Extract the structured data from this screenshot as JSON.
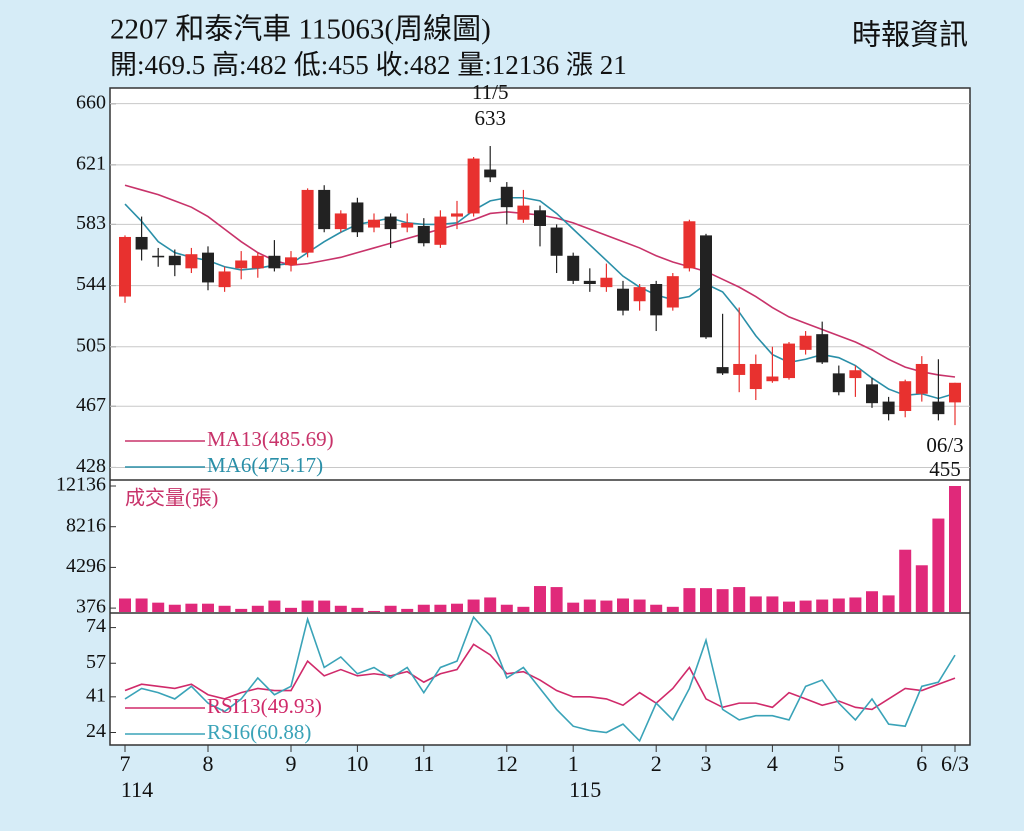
{
  "chart_data": {
    "type": "candlestick",
    "title": "2207  和泰汽車 115063(周線圖)",
    "source": "時報資訊",
    "subtitle": "開:469.5 高:482 低:455 收:482 量:12136 漲 21",
    "categories": [
      "7",
      null,
      null,
      null,
      null,
      "8",
      null,
      null,
      null,
      null,
      "9",
      null,
      null,
      null,
      "10",
      null,
      null,
      null,
      "11",
      null,
      null,
      null,
      null,
      "12",
      null,
      null,
      null,
      "1",
      null,
      null,
      null,
      null,
      "2",
      null,
      null,
      "3",
      null,
      null,
      null,
      "4",
      null,
      null,
      null,
      "5",
      null,
      null,
      null,
      null,
      "6",
      null,
      "6/3"
    ],
    "years": [
      "114",
      null,
      null,
      null,
      null,
      null,
      null,
      null,
      null,
      null,
      null,
      null,
      null,
      null,
      null,
      null,
      null,
      null,
      null,
      null,
      null,
      null,
      null,
      null,
      null,
      null,
      null,
      "115",
      null,
      null,
      null,
      null,
      null,
      null,
      null,
      null,
      null,
      null,
      null,
      null,
      null,
      null,
      null,
      null,
      null,
      null,
      null,
      null,
      null,
      null,
      null
    ],
    "up_color": "#e8312f",
    "down_color": "#222222",
    "open": [
      537,
      575,
      563,
      563,
      555,
      565,
      543,
      555,
      555,
      563,
      557,
      565,
      605,
      580,
      597,
      581,
      588,
      581,
      582,
      570,
      588,
      590,
      618,
      607,
      586,
      592,
      581,
      563,
      547,
      543,
      542,
      534,
      545,
      530,
      555,
      576,
      492,
      487,
      478,
      483,
      485,
      503,
      513,
      488,
      485,
      481,
      470,
      464,
      475,
      470,
      469.5
    ],
    "high": [
      576,
      588,
      568,
      567,
      568,
      569,
      556,
      566,
      565,
      573,
      566,
      606,
      608,
      592,
      600,
      590,
      590,
      590,
      587,
      592,
      598,
      626,
      633,
      610,
      605,
      595,
      583,
      565,
      555,
      558,
      547,
      545,
      547,
      552,
      586,
      577,
      526,
      530,
      500,
      505,
      508,
      515,
      521,
      493,
      493,
      485,
      473,
      484,
      499,
      497,
      482
    ],
    "low": [
      533,
      560,
      556,
      550,
      552,
      541,
      540,
      548,
      549,
      553,
      553,
      562,
      578,
      578,
      575,
      578,
      568,
      578,
      569,
      568,
      580,
      588,
      610,
      583,
      584,
      569,
      552,
      545,
      540,
      540,
      525,
      528,
      515,
      528,
      553,
      510,
      487,
      476,
      471,
      482,
      484,
      500,
      494,
      474,
      473,
      466,
      458,
      460,
      470,
      458,
      455
    ],
    "close": [
      575,
      567,
      562,
      557,
      564,
      546,
      553,
      560,
      563,
      555,
      562,
      605,
      580,
      590,
      578,
      586,
      580,
      584,
      571,
      588,
      590,
      625,
      613,
      594,
      595,
      582,
      563,
      547,
      545,
      549,
      528,
      543,
      525,
      550,
      585,
      511,
      488,
      494,
      494,
      486,
      507,
      512,
      495,
      476,
      490,
      469,
      462,
      483,
      494,
      462,
      482
    ],
    "ylim": [
      420,
      670
    ],
    "yticks": [
      428,
      467,
      505,
      544,
      583,
      621,
      660
    ],
    "grid": true,
    "annotations": [
      {
        "date": "11/5",
        "value": 633
      },
      {
        "date": "06/3",
        "value": 455
      }
    ],
    "series": [
      {
        "name": "MA13(485.69)",
        "color": "#c8336a",
        "values": [
          608,
          605,
          602,
          598,
          594,
          588,
          580,
          572,
          565,
          560,
          557,
          558,
          560,
          562,
          565,
          568,
          571,
          574,
          577,
          580,
          583,
          586,
          590,
          591,
          590,
          589,
          587,
          584,
          580,
          576,
          572,
          568,
          563,
          559,
          556,
          553,
          548,
          543,
          537,
          530,
          524,
          520,
          516,
          512,
          508,
          503,
          497,
          492,
          489,
          487,
          485.69
        ]
      },
      {
        "name": "MA6(475.17)",
        "color": "#2a8fa8",
        "values": [
          596,
          585,
          572,
          565,
          562,
          560,
          556,
          554,
          555,
          557,
          558,
          565,
          572,
          578,
          583,
          585,
          587,
          584,
          583,
          583,
          584,
          592,
          598,
          600,
          600,
          598,
          590,
          580,
          570,
          560,
          550,
          543,
          538,
          535,
          537,
          545,
          540,
          527,
          512,
          500,
          495,
          497,
          500,
          498,
          493,
          485,
          478,
          474,
          475,
          472,
          475.17
        ]
      }
    ],
    "volume": {
      "name": "成交量(張)",
      "color": "#e0297a",
      "values": [
        1300,
        1300,
        900,
        700,
        800,
        800,
        600,
        300,
        600,
        1100,
        400,
        1100,
        1100,
        600,
        400,
        100,
        600,
        300,
        700,
        700,
        800,
        1200,
        1400,
        700,
        500,
        2500,
        2400,
        900,
        1200,
        1100,
        1300,
        1200,
        700,
        500,
        2300,
        2300,
        2200,
        2400,
        1500,
        1500,
        1000,
        1100,
        1200,
        1300,
        1400,
        2000,
        1600,
        6000,
        4500,
        9000,
        12136
      ],
      "ylim": [
        0,
        12136
      ],
      "yticks": [
        376,
        4296,
        8216,
        12136
      ]
    },
    "rsi": {
      "ylim": [
        19,
        80
      ],
      "yticks": [
        24,
        41,
        57,
        74
      ],
      "series": [
        {
          "name": "RSI13(49.93)",
          "color": "#d02a6a",
          "values": [
            44,
            47,
            46,
            45,
            47,
            42,
            40,
            43,
            45,
            44,
            44,
            58,
            51,
            54,
            51,
            52,
            51,
            53,
            48,
            52,
            54,
            66,
            61,
            52,
            53,
            49,
            44,
            41,
            41,
            40,
            37,
            43,
            38,
            45,
            55,
            40,
            36,
            38,
            38,
            36,
            43,
            40,
            37,
            39,
            36,
            35,
            40,
            45,
            44,
            47,
            49.93
          ]
        },
        {
          "name": "RSI6(60.88)",
          "color": "#3aa3b8",
          "values": [
            40,
            45,
            43,
            40,
            46,
            38,
            34,
            40,
            50,
            42,
            46,
            78,
            55,
            60,
            52,
            55,
            50,
            55,
            43,
            55,
            58,
            79,
            70,
            50,
            55,
            45,
            35,
            27,
            25,
            24,
            28,
            20,
            38,
            30,
            45,
            68,
            35,
            30,
            32,
            32,
            30,
            46,
            49,
            38,
            30,
            40,
            28,
            27,
            46,
            48,
            60.88
          ]
        }
      ]
    }
  }
}
